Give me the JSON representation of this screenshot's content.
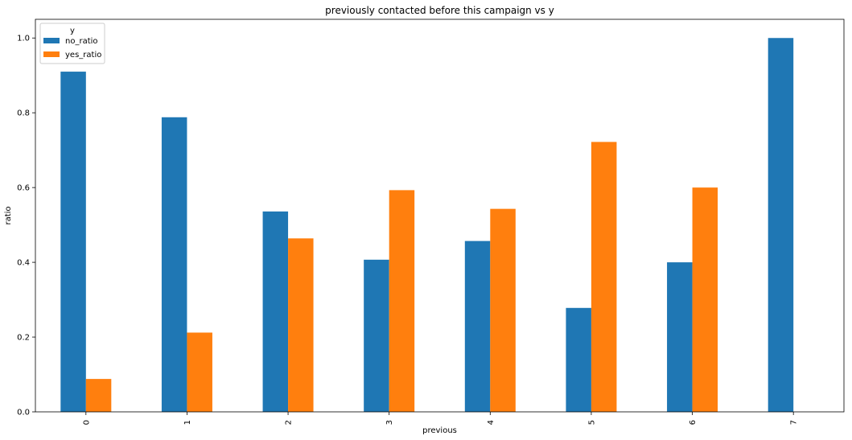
{
  "chart_data": {
    "type": "bar",
    "title": "previously contacted before this campaign vs y",
    "xlabel": "previous",
    "ylabel": "ratio",
    "categories": [
      "0",
      "1",
      "2",
      "3",
      "4",
      "5",
      "6",
      "7"
    ],
    "series": [
      {
        "name": "no_ratio",
        "color": "#1f77b4",
        "values": [
          0.91,
          0.788,
          0.536,
          0.407,
          0.457,
          0.278,
          0.4,
          1.0
        ]
      },
      {
        "name": "yes_ratio",
        "color": "#ff7f0e",
        "values": [
          0.088,
          0.212,
          0.464,
          0.593,
          0.543,
          0.722,
          0.6,
          0.0
        ]
      }
    ],
    "ylim": [
      0,
      1.05
    ],
    "yticks": [
      0.0,
      0.2,
      0.4,
      0.6,
      0.8,
      1.0
    ],
    "ytick_labels": [
      "0.0",
      "0.2",
      "0.4",
      "0.6",
      "0.8",
      "1.0"
    ],
    "xtick_rotation": "vertical",
    "grid": false,
    "legend": {
      "title": "y",
      "placement": "upper-left"
    }
  }
}
